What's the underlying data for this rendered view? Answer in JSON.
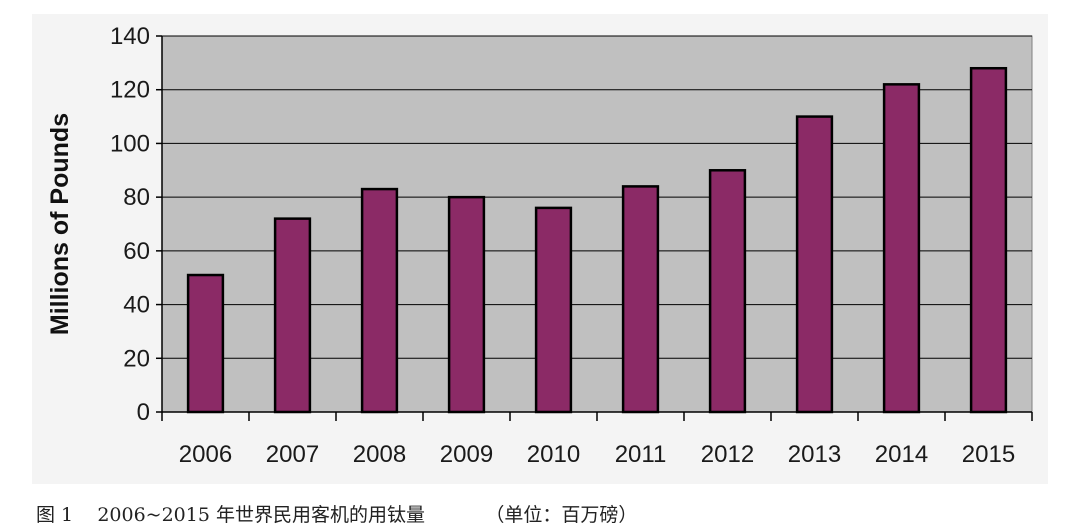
{
  "chart_data": {
    "type": "bar",
    "categories": [
      "2006",
      "2007",
      "2008",
      "2009",
      "2010",
      "2011",
      "2012",
      "2013",
      "2014",
      "2015"
    ],
    "values": [
      51,
      72,
      83,
      80,
      76,
      84,
      90,
      110,
      122,
      128
    ],
    "ylabel": "Millions of Pounds",
    "ylim": [
      0,
      140
    ],
    "yticks": [
      0,
      20,
      40,
      60,
      80,
      100,
      120,
      140
    ],
    "grid": true,
    "colors": {
      "bar": "#8b2a66",
      "plot_background": "#c0c0c0",
      "panel_background": "#f4f4f4"
    }
  },
  "caption": {
    "figure_label": "图 1",
    "text": "2006~2015 年世界民用客机的用钛量",
    "unit_note": "（单位：百万磅）"
  }
}
